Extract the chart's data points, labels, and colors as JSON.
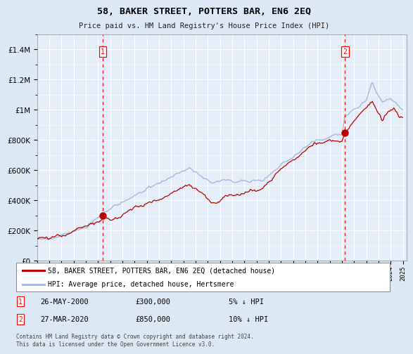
{
  "title": "58, BAKER STREET, POTTERS BAR, EN6 2EQ",
  "subtitle": "Price paid vs. HM Land Registry's House Price Index (HPI)",
  "legend_line1": "58, BAKER STREET, POTTERS BAR, EN6 2EQ (detached house)",
  "legend_line2": "HPI: Average price, detached house, Hertsmere",
  "annotation1_label": "1",
  "annotation1_date": "26-MAY-2000",
  "annotation1_price": 300000,
  "annotation1_note": "5% ↓ HPI",
  "annotation1_year": 2000.38,
  "annotation2_label": "2",
  "annotation2_date": "27-MAR-2020",
  "annotation2_price": 850000,
  "annotation2_note": "10% ↓ HPI",
  "annotation2_year": 2020.25,
  "footer": "Contains HM Land Registry data © Crown copyright and database right 2024.\nThis data is licensed under the Open Government Licence v3.0.",
  "hpi_color": "#aabbdd",
  "price_color": "#bb0000",
  "bg_color": "#dde8f5",
  "plot_bg": "#e5eef8",
  "grid_color": "#ffffff",
  "ylim": [
    0,
    1500000
  ],
  "yticks": [
    0,
    200000,
    400000,
    600000,
    800000,
    1000000,
    1200000,
    1400000
  ],
  "start_year": 1995,
  "end_year": 2025
}
